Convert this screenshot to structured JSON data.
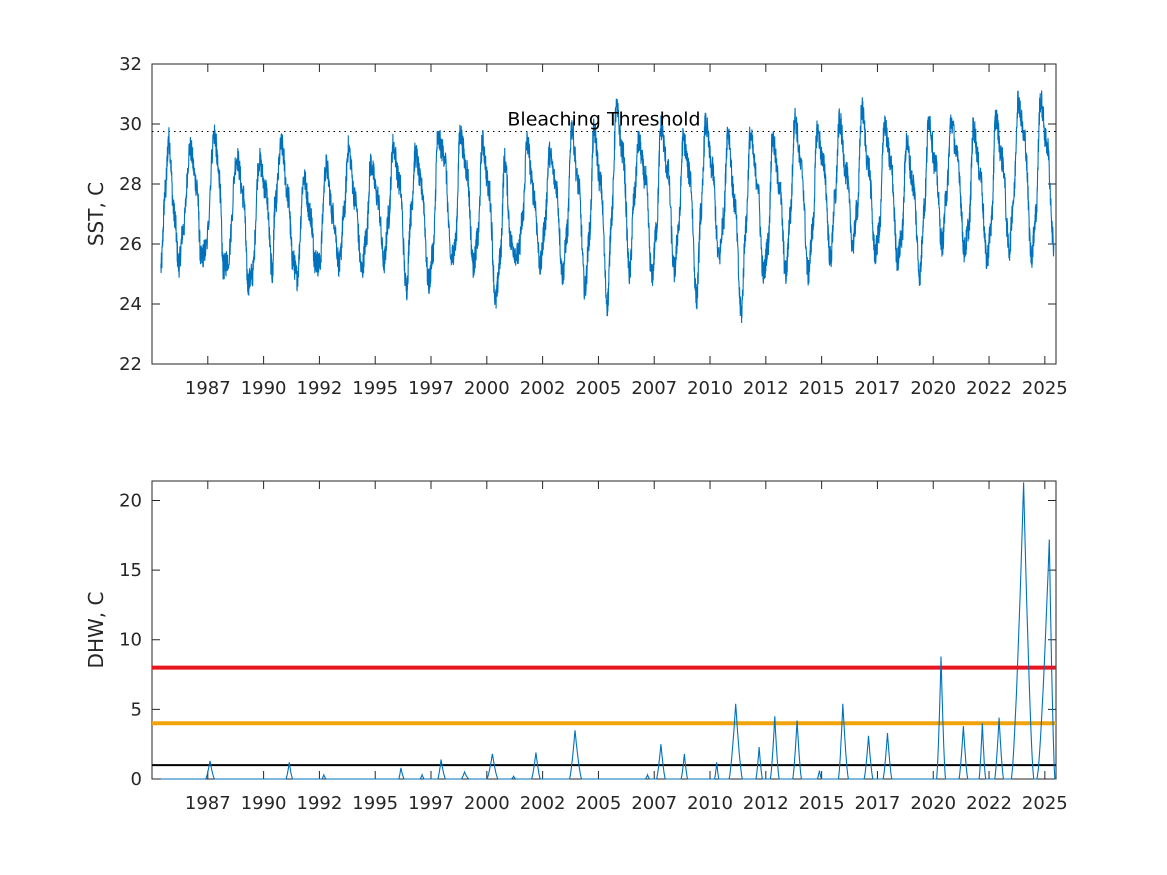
{
  "chart_data": [
    {
      "type": "line",
      "ylabel": "SST, C",
      "xlim": [
        1984.6,
        2025.1
      ],
      "ylim": [
        22,
        32
      ],
      "yticks": [
        22,
        24,
        26,
        28,
        30,
        32
      ],
      "xtick_labels": [
        "1987",
        "1990",
        "1992",
        "1995",
        "1997",
        "2000",
        "2002",
        "2005",
        "2007",
        "2010",
        "2012",
        "2015",
        "2017",
        "2020",
        "2022",
        "2025"
      ],
      "annotation": {
        "text": "Bleaching Threshold",
        "value": 29.75
      },
      "series_color": "#0072BD",
      "series": [
        {
          "x": [
            1985.0,
            1985.2,
            1985.35,
            1985.6,
            1985.8,
            1986.0,
            1986.3,
            1986.6,
            1986.8,
            1987.0,
            1987.4,
            1987.6,
            1987.8,
            1988.0,
            1988.4,
            1988.7,
            1988.9,
            1989.1,
            1989.4,
            1989.7,
            1990.0,
            1990.1,
            1990.4,
            1990.7,
            1990.9,
            1991.1,
            1991.4,
            1991.7,
            1991.9,
            1992.1,
            1992.4,
            1992.7,
            1993.0,
            1993.2,
            1993.4,
            1993.7,
            1994.0,
            1994.2,
            1994.4,
            1994.7,
            1995.0,
            1995.2,
            1995.4,
            1995.7,
            1996.0,
            1996.2,
            1996.4,
            1996.7,
            1997.0,
            1997.2,
            1997.4,
            1997.7,
            1998.0,
            1998.2,
            1998.4,
            1998.7,
            1999.0,
            1999.2,
            1999.4,
            1999.7,
            2000.0,
            2000.2,
            2000.4,
            2000.7,
            2001.0,
            2001.2,
            2001.4,
            2001.7,
            2002.0,
            2002.2,
            2002.4,
            2002.7,
            2003.0,
            2003.2,
            2003.4,
            2003.7,
            2004.0,
            2004.2,
            2004.4,
            2004.7,
            2005.0,
            2005.2,
            2005.4,
            2005.7,
            2006.0,
            2006.2,
            2006.4,
            2006.7,
            2007.0,
            2007.2,
            2007.4,
            2007.7,
            2008.0,
            2008.2,
            2008.4,
            2008.7,
            2009.0,
            2009.2,
            2009.4,
            2009.7,
            2010.0,
            2010.2,
            2010.4,
            2010.7,
            2011.0,
            2011.2,
            2011.4,
            2011.7,
            2012.0,
            2012.2,
            2012.4,
            2012.7,
            2013.0,
            2013.2,
            2013.4,
            2013.7,
            2014.0,
            2014.2,
            2014.4,
            2014.7,
            2015.0,
            2015.2,
            2015.4,
            2015.7,
            2016.0,
            2016.2,
            2016.4,
            2016.7,
            2017.0,
            2017.2,
            2017.4,
            2017.7,
            2018.0,
            2018.2,
            2018.4,
            2018.7,
            2019.0,
            2019.2,
            2019.4,
            2019.7,
            2020.0,
            2020.2,
            2020.4,
            2020.7,
            2021.0,
            2021.2,
            2021.4,
            2021.7,
            2022.0,
            2022.2,
            2022.4,
            2022.7,
            2023.0,
            2023.2,
            2023.4,
            2023.7,
            2024.0,
            2024.2,
            2024.4,
            2024.7,
            2025.0
          ],
          "y": [
            25.2,
            27.8,
            29.5,
            27.0,
            25.3,
            26.5,
            29.2,
            28.0,
            25.5,
            25.8,
            29.7,
            28.3,
            25.2,
            25.5,
            28.9,
            27.6,
            24.7,
            25.0,
            28.8,
            27.8,
            25.0,
            27.2,
            29.3,
            27.6,
            25.5,
            24.9,
            28.2,
            27.0,
            25.5,
            25.3,
            28.6,
            27.0,
            25.3,
            27.0,
            29.2,
            27.5,
            25.1,
            26.2,
            28.7,
            27.6,
            25.4,
            26.9,
            29.3,
            28.0,
            24.5,
            27.0,
            29.0,
            27.8,
            24.7,
            25.8,
            29.5,
            29.0,
            25.5,
            26.0,
            29.7,
            28.5,
            25.3,
            26.2,
            29.4,
            27.8,
            24.1,
            25.5,
            28.8,
            26.0,
            25.6,
            26.8,
            29.4,
            27.7,
            25.3,
            26.6,
            29.0,
            28.0,
            25.0,
            26.4,
            29.9,
            28.0,
            24.5,
            26.3,
            29.8,
            28.0,
            24.0,
            27.0,
            30.5,
            29.0,
            25.0,
            27.5,
            29.4,
            28.2,
            24.9,
            26.5,
            29.9,
            28.5,
            25.1,
            26.6,
            29.5,
            28.3,
            24.2,
            27.1,
            30.0,
            28.5,
            25.5,
            26.8,
            29.8,
            27.4,
            23.7,
            26.5,
            29.6,
            28.2,
            25.0,
            26.0,
            29.5,
            28.0,
            25.0,
            27.0,
            30.2,
            28.5,
            25.0,
            26.5,
            29.8,
            28.6,
            25.5,
            27.5,
            30.1,
            28.4,
            26.0,
            27.2,
            30.5,
            28.6,
            25.7,
            26.5,
            30.0,
            28.7,
            25.5,
            26.3,
            29.4,
            28.0,
            25.0,
            27.2,
            30.2,
            28.6,
            26.0,
            27.7,
            30.1,
            28.8,
            25.8,
            26.6,
            29.9,
            28.4,
            25.5,
            26.6,
            30.2,
            28.8,
            25.8,
            27.5,
            30.8,
            29.5,
            25.6,
            27.0,
            30.8,
            29.3,
            26.0
          ]
        }
      ]
    },
    {
      "type": "line",
      "ylabel": "DHW, C",
      "xlim": [
        1984.6,
        2025.1
      ],
      "ylim": [
        0,
        21.4
      ],
      "yticks": [
        0,
        5,
        10,
        15,
        20
      ],
      "xtick_labels": [
        "1987",
        "1990",
        "1992",
        "1995",
        "1997",
        "2000",
        "2002",
        "2005",
        "2007",
        "2010",
        "2012",
        "2015",
        "2017",
        "2020",
        "2022",
        "2025"
      ],
      "reference_lines": [
        {
          "value": 8,
          "color": "#E8161E"
        },
        {
          "value": 4,
          "color": "#F0A30A"
        },
        {
          "value": 1,
          "color": "#000000"
        }
      ],
      "series_color": "#0072BD",
      "series": [
        {
          "events": [
            {
              "start": 1987.0,
              "peak": 1987.2,
              "end": 1987.4,
              "value": 1.3
            },
            {
              "start": 1990.6,
              "peak": 1990.75,
              "end": 1990.9,
              "value": 1.2
            },
            {
              "start": 1992.2,
              "peak": 1992.3,
              "end": 1992.4,
              "value": 0.3
            },
            {
              "start": 1995.65,
              "peak": 1995.75,
              "end": 1995.9,
              "value": 0.8
            },
            {
              "start": 1996.6,
              "peak": 1996.7,
              "end": 1996.8,
              "value": 0.3
            },
            {
              "start": 1997.4,
              "peak": 1997.55,
              "end": 1997.75,
              "value": 1.4
            },
            {
              "start": 1998.45,
              "peak": 1998.6,
              "end": 1998.8,
              "value": 0.5
            },
            {
              "start": 1999.6,
              "peak": 1999.85,
              "end": 2000.1,
              "value": 1.8
            },
            {
              "start": 2000.7,
              "peak": 2000.8,
              "end": 2000.9,
              "value": 0.2
            },
            {
              "start": 2001.6,
              "peak": 2001.8,
              "end": 2002.0,
              "value": 1.9
            },
            {
              "start": 2003.3,
              "peak": 2003.55,
              "end": 2003.85,
              "value": 3.5
            },
            {
              "start": 2006.7,
              "peak": 2006.8,
              "end": 2006.9,
              "value": 0.3
            },
            {
              "start": 2007.2,
              "peak": 2007.4,
              "end": 2007.6,
              "value": 2.5
            },
            {
              "start": 2008.3,
              "peak": 2008.45,
              "end": 2008.6,
              "value": 1.8
            },
            {
              "start": 2009.8,
              "peak": 2009.9,
              "end": 2010.0,
              "value": 1.2
            },
            {
              "start": 2010.45,
              "peak": 2010.75,
              "end": 2011.05,
              "value": 5.4
            },
            {
              "start": 2011.65,
              "peak": 2011.8,
              "end": 2011.95,
              "value": 2.3
            },
            {
              "start": 2012.3,
              "peak": 2012.5,
              "end": 2012.7,
              "value": 4.5
            },
            {
              "start": 2013.3,
              "peak": 2013.5,
              "end": 2013.7,
              "value": 4.2
            },
            {
              "start": 2014.4,
              "peak": 2014.5,
              "end": 2014.6,
              "value": 0.6
            },
            {
              "start": 2015.35,
              "peak": 2015.55,
              "end": 2015.8,
              "value": 5.4
            },
            {
              "start": 2016.5,
              "peak": 2016.7,
              "end": 2016.9,
              "value": 3.1
            },
            {
              "start": 2017.35,
              "peak": 2017.55,
              "end": 2017.75,
              "value": 3.3
            },
            {
              "start": 2019.75,
              "peak": 2019.95,
              "end": 2020.15,
              "value": 8.8
            },
            {
              "start": 2020.75,
              "peak": 2020.95,
              "end": 2021.15,
              "value": 3.8
            },
            {
              "start": 2021.65,
              "peak": 2021.8,
              "end": 2021.95,
              "value": 4.0
            },
            {
              "start": 2022.35,
              "peak": 2022.55,
              "end": 2022.75,
              "value": 4.4
            },
            {
              "start": 2023.1,
              "peak": 2023.65,
              "end": 2024.1,
              "value": 21.3
            },
            {
              "start": 2024.25,
              "peak": 2024.8,
              "end": 2025.05,
              "value": 17.2
            }
          ]
        }
      ]
    }
  ]
}
